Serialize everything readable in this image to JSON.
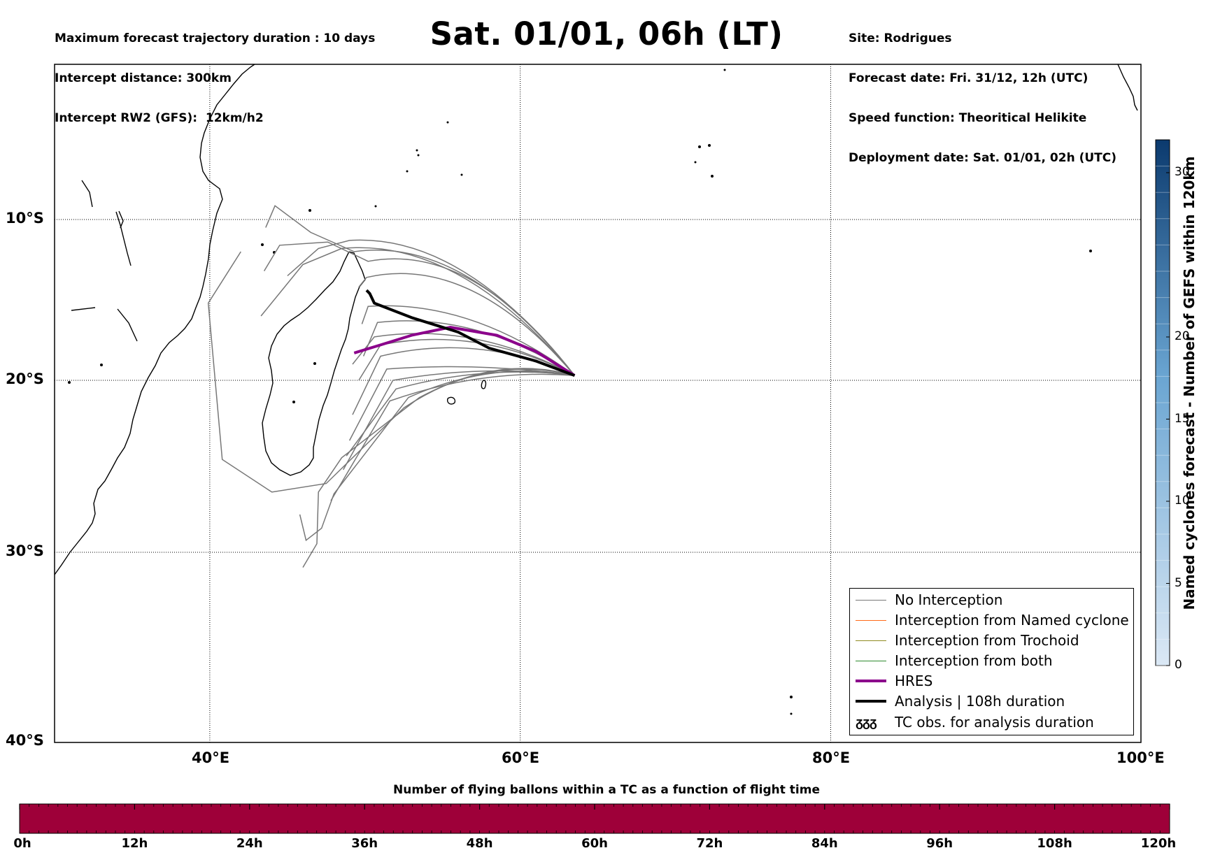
{
  "header": {
    "left_lines": [
      "Maximum forecast trajectory duration : 10 days",
      "Intercept distance: 300km",
      "Intercept RW2 (GFS):  12km/h2"
    ],
    "title": "Sat. 01/01, 06h (LT)",
    "right_lines": [
      "Site: Rodrigues",
      "Forecast date: Fri. 31/12, 12h (UTC)",
      "Speed function: Theoritical Helikite",
      "Deployment date: Sat. 01/01, 02h (UTC)"
    ]
  },
  "map": {
    "lat_labels": [
      "10°S",
      "20°S",
      "30°S",
      "40°S"
    ],
    "lon_labels": [
      "40°E",
      "60°E",
      "80°E",
      "100°E"
    ],
    "lat_values": [
      -10,
      -20,
      -30,
      -40
    ],
    "lon_values": [
      40,
      60,
      80,
      100
    ],
    "lon_range": [
      30,
      100
    ],
    "lat_range": [
      -40,
      -1
    ]
  },
  "legend": {
    "items": [
      {
        "label": "No Interception",
        "color": "#777777",
        "width": 1.5
      },
      {
        "label": "Interception from Named cyclone",
        "color": "#ff6a1a",
        "width": 1.5
      },
      {
        "label": "Interception from Trochoid",
        "color": "#8f8a20",
        "width": 1.5
      },
      {
        "label": "Interception from both",
        "color": "#2e8b2e",
        "width": 1.5
      },
      {
        "label": "HRES",
        "color": "#8b008b",
        "width": 4
      },
      {
        "label": "Analysis | 108h duration",
        "color": "#000000",
        "width": 4
      }
    ],
    "tc_symbol": "ᵹᵹᵹ",
    "tc_label": "TC obs. for analysis duration"
  },
  "colorbar": {
    "title": "Named cyclones forecast - Number of GEFS within 120km",
    "ticks": [
      "0",
      "5",
      "10",
      "15",
      "20",
      "30"
    ],
    "tick_values": [
      0,
      5,
      10,
      15,
      20,
      30
    ],
    "max": 32,
    "color_low": "#dbe8f5",
    "color_high": "#0b3a6e"
  },
  "time_bar": {
    "title": "Number of flying ballons within a TC as a function of flight time",
    "labels": [
      "0h",
      "12h",
      "24h",
      "36h",
      "48h",
      "60h",
      "72h",
      "84h",
      "96h",
      "108h",
      "120h"
    ],
    "color": "#9e0039"
  },
  "trajectories": {
    "origin": [
      63.5,
      -19.7
    ],
    "hres": [
      [
        63.5,
        -19.7
      ],
      [
        61,
        -18.2
      ],
      [
        58.5,
        -17.2
      ],
      [
        55.5,
        -16.7
      ],
      [
        53,
        -17.2
      ],
      [
        51,
        -17.8
      ],
      [
        49.3,
        -18.3
      ]
    ],
    "analysis": [
      [
        63.5,
        -19.7
      ],
      [
        61,
        -18.8
      ],
      [
        58,
        -18
      ],
      [
        56,
        -17
      ],
      [
        53,
        -16.1
      ],
      [
        50.6,
        -15.2
      ],
      [
        50.3,
        -14.6
      ],
      [
        50.1,
        -14.4
      ]
    ],
    "gefs_ends": [
      [
        [
          49,
          -11.3
        ],
        [
          47,
          -11.8
        ],
        [
          45,
          -13.5
        ]
      ],
      [
        [
          48.5,
          -11.8
        ],
        [
          46,
          -12.8
        ],
        [
          43.3,
          -16
        ]
      ],
      [
        [
          49.3,
          -12
        ],
        [
          46.5,
          -10.8
        ],
        [
          44.2,
          -9.2
        ],
        [
          43.6,
          -10.5
        ]
      ],
      [
        [
          50.2,
          -12.6
        ],
        [
          47.6,
          -11.4
        ],
        [
          44.5,
          -11.6
        ],
        [
          43.5,
          -13.2
        ]
      ],
      [
        [
          50.1,
          -13.6
        ],
        [
          49.6,
          -14.2
        ]
      ],
      [
        [
          50.2,
          -15.4
        ],
        [
          49.8,
          -16.5
        ]
      ],
      [
        [
          50.8,
          -16.4
        ],
        [
          49.9,
          -18.5
        ]
      ],
      [
        [
          50.6,
          -17.3
        ],
        [
          49.2,
          -19
        ]
      ],
      [
        [
          51,
          -17.8
        ],
        [
          49.6,
          -20
        ]
      ],
      [
        [
          51,
          -18.5
        ],
        [
          49.2,
          -22
        ]
      ],
      [
        [
          51.4,
          -19.3
        ],
        [
          49,
          -23.5
        ]
      ],
      [
        [
          51.8,
          -20
        ],
        [
          48.6,
          -25.2
        ]
      ],
      [
        [
          52.8,
          -21
        ],
        [
          48,
          -26.6
        ],
        [
          47.2,
          -28.6
        ],
        [
          46.2,
          -29.3
        ],
        [
          45.8,
          -27.8
        ]
      ],
      [
        [
          53.5,
          -21
        ],
        [
          48.5,
          -24.5
        ],
        [
          47,
          -26.5
        ],
        [
          46.9,
          -29.5
        ],
        [
          46,
          -30.8
        ]
      ],
      [
        [
          52.5,
          -21.6
        ],
        [
          47.5,
          -26
        ],
        [
          44,
          -26.5
        ],
        [
          40.8,
          -24.6
        ],
        [
          39.9,
          -15.2
        ],
        [
          42,
          -12
        ]
      ],
      [
        [
          51.6,
          -21.2
        ],
        [
          47.8,
          -27
        ]
      ],
      [
        [
          52,
          -20.5
        ],
        [
          48.8,
          -24.4
        ]
      ]
    ]
  }
}
